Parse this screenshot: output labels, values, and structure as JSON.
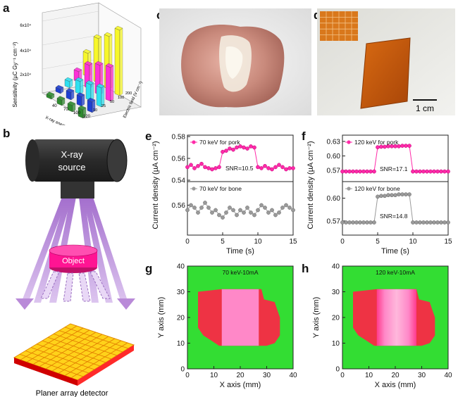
{
  "panels": {
    "a": {
      "label": "a",
      "ylabel": "Sensitivity (µC Gy⁻¹ cm⁻²)",
      "yticks": [
        "2x10⁴",
        "4x10⁴",
        "6x10⁴"
      ],
      "xaxis_label": "X-ray energy (keV)",
      "zaxis_label": "Electric field (V cm⁻¹)",
      "energy_ticks": [
        "40",
        "70",
        "100",
        "120"
      ],
      "field_ticks": [
        "10",
        "25",
        "50",
        "100",
        "200"
      ]
    },
    "b": {
      "label": "b",
      "source_label": "X-ray\nsource",
      "object_label": "Object",
      "detector_label": "Planer array detector"
    },
    "c": {
      "label": "c"
    },
    "d": {
      "label": "d",
      "scalebar": "1 cm"
    },
    "e": {
      "label": "e",
      "ylabel": "Current density (µA cm⁻²)",
      "xlabel": "Time (s)",
      "top_legend": "70 keV for pork",
      "bottom_legend": "70 keV for bone",
      "top_snr": "SNR=10.5",
      "top_yticks": [
        "0.54",
        "0.56",
        "0.58"
      ],
      "bottom_yticks": [
        "0.56"
      ],
      "xticks": [
        "0",
        "5",
        "10",
        "15"
      ]
    },
    "f": {
      "label": "f",
      "ylabel": "Current density (µA cm⁻²)",
      "xlabel": "Time (s)",
      "top_legend": "120 keV for pork",
      "bottom_legend": "120 keV for bone",
      "top_snr": "SNR=17.1",
      "bottom_snr": "SNR=14.8",
      "top_yticks": [
        "0.57",
        "0.60",
        "0.63"
      ],
      "bottom_yticks": [
        "0.57",
        "0.60"
      ],
      "xticks": [
        "0",
        "5",
        "10",
        "15"
      ]
    },
    "g": {
      "label": "g",
      "title": "70 keV-10mA",
      "xlabel": "X axis (mm)",
      "ylabel": "Y axis (mm)",
      "ticks": [
        "0",
        "10",
        "20",
        "30",
        "40"
      ]
    },
    "h": {
      "label": "h",
      "title": "120 keV-10mA",
      "xlabel": "X axis (mm)",
      "ylabel": "Y axis (mm)",
      "ticks": [
        "0",
        "10",
        "20",
        "30",
        "40"
      ]
    }
  },
  "colors": {
    "pork": "#ff2aa8",
    "bone": "#9a9a9a",
    "green": "#33dd33",
    "red": "#ee3344",
    "pink": "#ff88c8",
    "beam": "#b98ad8"
  },
  "chart_data": [
    {
      "panel": "e-top",
      "type": "line",
      "series": [
        {
          "name": "70 keV for pork",
          "x": [
            0,
            0.5,
            1,
            1.5,
            2,
            2.5,
            3,
            3.5,
            4,
            4.5,
            5,
            5.5,
            6,
            6.5,
            7,
            7.5,
            8,
            8.5,
            9,
            9.5,
            10,
            10.5,
            11,
            11.5,
            12,
            12.5,
            13,
            13.5,
            14,
            14.5,
            15
          ],
          "values": [
            0.552,
            0.554,
            0.551,
            0.553,
            0.555,
            0.552,
            0.551,
            0.55,
            0.551,
            0.552,
            0.566,
            0.567,
            0.569,
            0.568,
            0.57,
            0.571,
            0.57,
            0.569,
            0.571,
            0.57,
            0.552,
            0.551,
            0.553,
            0.551,
            0.55,
            0.552,
            0.554,
            0.552,
            0.55,
            0.551,
            0.551
          ]
        }
      ],
      "xlim": [
        0,
        15
      ],
      "ylim": [
        0.54,
        0.58
      ]
    },
    {
      "panel": "e-bottom",
      "type": "line",
      "series": [
        {
          "name": "70 keV for bone",
          "x": [
            0,
            0.5,
            1,
            1.5,
            2,
            2.5,
            3,
            3.5,
            4,
            4.5,
            5,
            5.5,
            6,
            6.5,
            7,
            7.5,
            8,
            8.5,
            9,
            9.5,
            10,
            10.5,
            11,
            11.5,
            12,
            12.5,
            13,
            13.5,
            14,
            14.5,
            15
          ],
          "values": [
            0.554,
            0.556,
            0.555,
            0.553,
            0.555,
            0.557,
            0.555,
            0.553,
            0.554,
            0.552,
            0.551,
            0.553,
            0.555,
            0.554,
            0.552,
            0.554,
            0.553,
            0.555,
            0.553,
            0.552,
            0.554,
            0.556,
            0.555,
            0.553,
            0.554,
            0.552,
            0.553,
            0.555,
            0.556,
            0.555,
            0.554
          ]
        }
      ],
      "xlim": [
        0,
        15
      ],
      "ylim": [
        0.545,
        0.565
      ]
    },
    {
      "panel": "f-top",
      "type": "line",
      "series": [
        {
          "name": "120 keV for pork",
          "x": [
            0,
            0.5,
            1,
            1.5,
            2,
            2.5,
            3,
            3.5,
            4,
            4.5,
            5,
            5.5,
            6,
            6.5,
            7,
            7.5,
            8,
            8.5,
            9,
            9.5,
            10,
            10.5,
            11,
            11.5,
            12,
            12.5,
            13,
            13.5,
            14,
            14.5,
            15
          ],
          "values": [
            0.568,
            0.568,
            0.568,
            0.568,
            0.568,
            0.568,
            0.568,
            0.568,
            0.568,
            0.568,
            0.618,
            0.619,
            0.619,
            0.62,
            0.62,
            0.62,
            0.62,
            0.621,
            0.621,
            0.621,
            0.568,
            0.568,
            0.568,
            0.568,
            0.568,
            0.568,
            0.568,
            0.568,
            0.568,
            0.568,
            0.568
          ]
        }
      ],
      "xlim": [
        0,
        15
      ],
      "ylim": [
        0.55,
        0.64
      ]
    },
    {
      "panel": "f-bottom",
      "type": "line",
      "series": [
        {
          "name": "120 keV for bone",
          "x": [
            0,
            0.5,
            1,
            1.5,
            2,
            2.5,
            3,
            3.5,
            4,
            4.5,
            5,
            5.5,
            6,
            6.5,
            7,
            7.5,
            8,
            8.5,
            9,
            9.5,
            10,
            10.5,
            11,
            11.5,
            12,
            12.5,
            13,
            13.5,
            14,
            14.5,
            15
          ],
          "values": [
            0.568,
            0.568,
            0.568,
            0.568,
            0.568,
            0.568,
            0.568,
            0.568,
            0.568,
            0.568,
            0.602,
            0.603,
            0.603,
            0.604,
            0.604,
            0.604,
            0.605,
            0.605,
            0.605,
            0.605,
            0.568,
            0.568,
            0.568,
            0.568,
            0.568,
            0.568,
            0.568,
            0.568,
            0.568,
            0.568,
            0.568
          ]
        }
      ],
      "xlim": [
        0,
        15
      ],
      "ylim": [
        0.555,
        0.62
      ]
    },
    {
      "panel": "a",
      "type": "bar",
      "categories": [
        "40",
        "70",
        "100",
        "120"
      ],
      "series": [
        {
          "values": [
            0.3,
            0.5,
            0.6,
            0.8
          ]
        },
        {
          "values": [
            0.4,
            0.7,
            0.9,
            1.0
          ]
        },
        {
          "values": [
            0.6,
            1.2,
            1.5,
            1.8
          ]
        },
        {
          "values": [
            1.0,
            2.2,
            2.8,
            3.2
          ]
        },
        {
          "values": [
            2.2,
            4.2,
            5.0,
            6.2
          ]
        }
      ],
      "ylim": [
        0,
        6.5
      ]
    }
  ]
}
